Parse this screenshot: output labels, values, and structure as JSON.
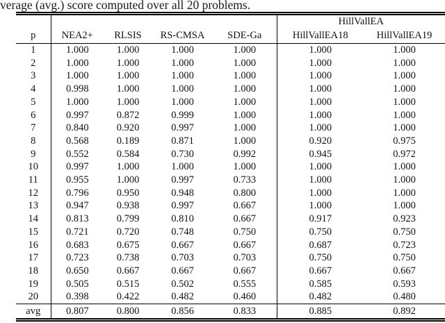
{
  "caption": "verage (avg.) score computed over all 20 problems.",
  "colors": {
    "background": "#ffffff",
    "text": "#111111",
    "rule": "#000000"
  },
  "table": {
    "group_header": "HillVallEA",
    "columns": [
      "p",
      "NEA2+",
      "RLSIS",
      "RS-CMSA",
      "SDE-Ga",
      "HillVallEA18",
      "HillVallEA19"
    ],
    "rows": [
      {
        "p": "1",
        "values": [
          "1.000",
          "1.000",
          "1.000",
          "1.000",
          "1.000",
          "1.000"
        ]
      },
      {
        "p": "2",
        "values": [
          "1.000",
          "1.000",
          "1.000",
          "1.000",
          "1.000",
          "1.000"
        ]
      },
      {
        "p": "3",
        "values": [
          "1.000",
          "1.000",
          "1.000",
          "1.000",
          "1.000",
          "1.000"
        ]
      },
      {
        "p": "4",
        "values": [
          "0.998",
          "1.000",
          "1.000",
          "1.000",
          "1.000",
          "1.000"
        ]
      },
      {
        "p": "5",
        "values": [
          "1.000",
          "1.000",
          "1.000",
          "1.000",
          "1.000",
          "1.000"
        ]
      },
      {
        "p": "6",
        "values": [
          "0.997",
          "0.872",
          "0.999",
          "1.000",
          "1.000",
          "1.000"
        ]
      },
      {
        "p": "7",
        "values": [
          "0.840",
          "0.920",
          "0.997",
          "1.000",
          "1.000",
          "1.000"
        ]
      },
      {
        "p": "8",
        "values": [
          "0.568",
          "0.189",
          "0.871",
          "1.000",
          "0.920",
          "0.975"
        ]
      },
      {
        "p": "9",
        "values": [
          "0.552",
          "0.584",
          "0.730",
          "0.992",
          "0.945",
          "0.972"
        ]
      },
      {
        "p": "10",
        "values": [
          "0.997",
          "1.000",
          "1.000",
          "1.000",
          "1.000",
          "1.000"
        ]
      },
      {
        "p": "11",
        "values": [
          "0.955",
          "1.000",
          "0.997",
          "0.733",
          "1.000",
          "1.000"
        ]
      },
      {
        "p": "12",
        "values": [
          "0.796",
          "0.950",
          "0.948",
          "0.800",
          "1.000",
          "1.000"
        ]
      },
      {
        "p": "13",
        "values": [
          "0.947",
          "0.938",
          "0.997",
          "0.667",
          "1.000",
          "1.000"
        ]
      },
      {
        "p": "14",
        "values": [
          "0.813",
          "0.799",
          "0.810",
          "0.667",
          "0.917",
          "0.923"
        ]
      },
      {
        "p": "15",
        "values": [
          "0.721",
          "0.720",
          "0.748",
          "0.750",
          "0.750",
          "0.750"
        ]
      },
      {
        "p": "16",
        "values": [
          "0.683",
          "0.675",
          "0.667",
          "0.667",
          "0.687",
          "0.723"
        ]
      },
      {
        "p": "17",
        "values": [
          "0.723",
          "0.738",
          "0.703",
          "0.703",
          "0.750",
          "0.750"
        ]
      },
      {
        "p": "18",
        "values": [
          "0.650",
          "0.667",
          "0.667",
          "0.667",
          "0.667",
          "0.667"
        ]
      },
      {
        "p": "19",
        "values": [
          "0.505",
          "0.515",
          "0.502",
          "0.555",
          "0.585",
          "0.593"
        ]
      },
      {
        "p": "20",
        "values": [
          "0.398",
          "0.422",
          "0.482",
          "0.460",
          "0.482",
          "0.480"
        ]
      }
    ],
    "avg_row": {
      "label": "avg",
      "values": [
        "0.807",
        "0.800",
        "0.856",
        "0.833",
        "0.885",
        "0.892"
      ]
    }
  }
}
